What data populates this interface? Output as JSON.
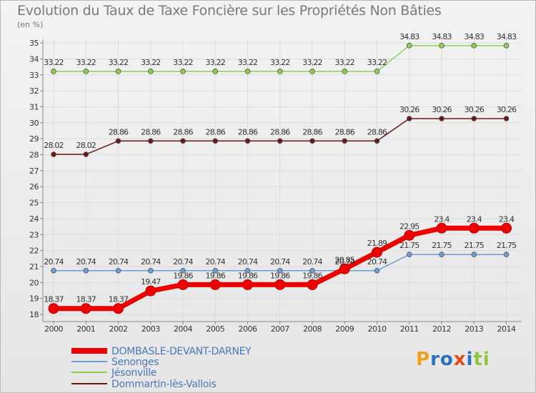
{
  "title": "Evolution du Taux de Taxe Foncière sur les Propriétés Non Bâties",
  "unit_label": "(en %)",
  "logo": "Proxiti",
  "chart_data": {
    "type": "line",
    "title": "Evolution du Taux de Taxe Foncière sur les Propriétés Non Bâties",
    "ylabel": "(en %)",
    "xlabel": "",
    "ylim": [
      18,
      35
    ],
    "yticks": [
      18,
      19,
      20,
      21,
      22,
      23,
      24,
      25,
      26,
      27,
      28,
      29,
      30,
      31,
      32,
      33,
      34,
      35
    ],
    "x": [
      "2000",
      "2001",
      "2002",
      "2003",
      "2004",
      "2005",
      "2006",
      "2007",
      "2008",
      "2009",
      "2010",
      "2011",
      "2012",
      "2013",
      "2014"
    ],
    "series": [
      {
        "name": "DOMBASLE-DEVANT-DARNEY",
        "color": "#ee0000",
        "values": [
          18.37,
          18.37,
          18.37,
          19.47,
          19.86,
          19.86,
          19.86,
          19.86,
          19.86,
          20.85,
          21.89,
          22.95,
          23.4,
          23.4,
          23.4
        ]
      },
      {
        "name": "Senonges",
        "color": "#6a9ed4",
        "values": [
          20.74,
          20.74,
          20.74,
          20.74,
          20.74,
          20.74,
          20.74,
          20.74,
          20.74,
          20.74,
          20.74,
          21.75,
          21.75,
          21.75,
          21.75
        ]
      },
      {
        "name": "Jésonville",
        "color": "#8ed04e",
        "values": [
          33.22,
          33.22,
          33.22,
          33.22,
          33.22,
          33.22,
          33.22,
          33.22,
          33.22,
          33.22,
          33.22,
          34.83,
          34.83,
          34.83,
          34.83
        ]
      },
      {
        "name": "Dommartin-lès-Vallois",
        "color": "#6b1818",
        "values": [
          28.02,
          28.02,
          28.86,
          28.86,
          28.86,
          28.86,
          28.86,
          28.86,
          28.86,
          28.86,
          28.86,
          30.26,
          30.26,
          30.26,
          30.26
        ]
      }
    ],
    "legend": [
      "DOMBASLE-DEVANT-DARNEY",
      "Senonges",
      "Jésonville",
      "Dommartin-lès-Vallois"
    ]
  }
}
